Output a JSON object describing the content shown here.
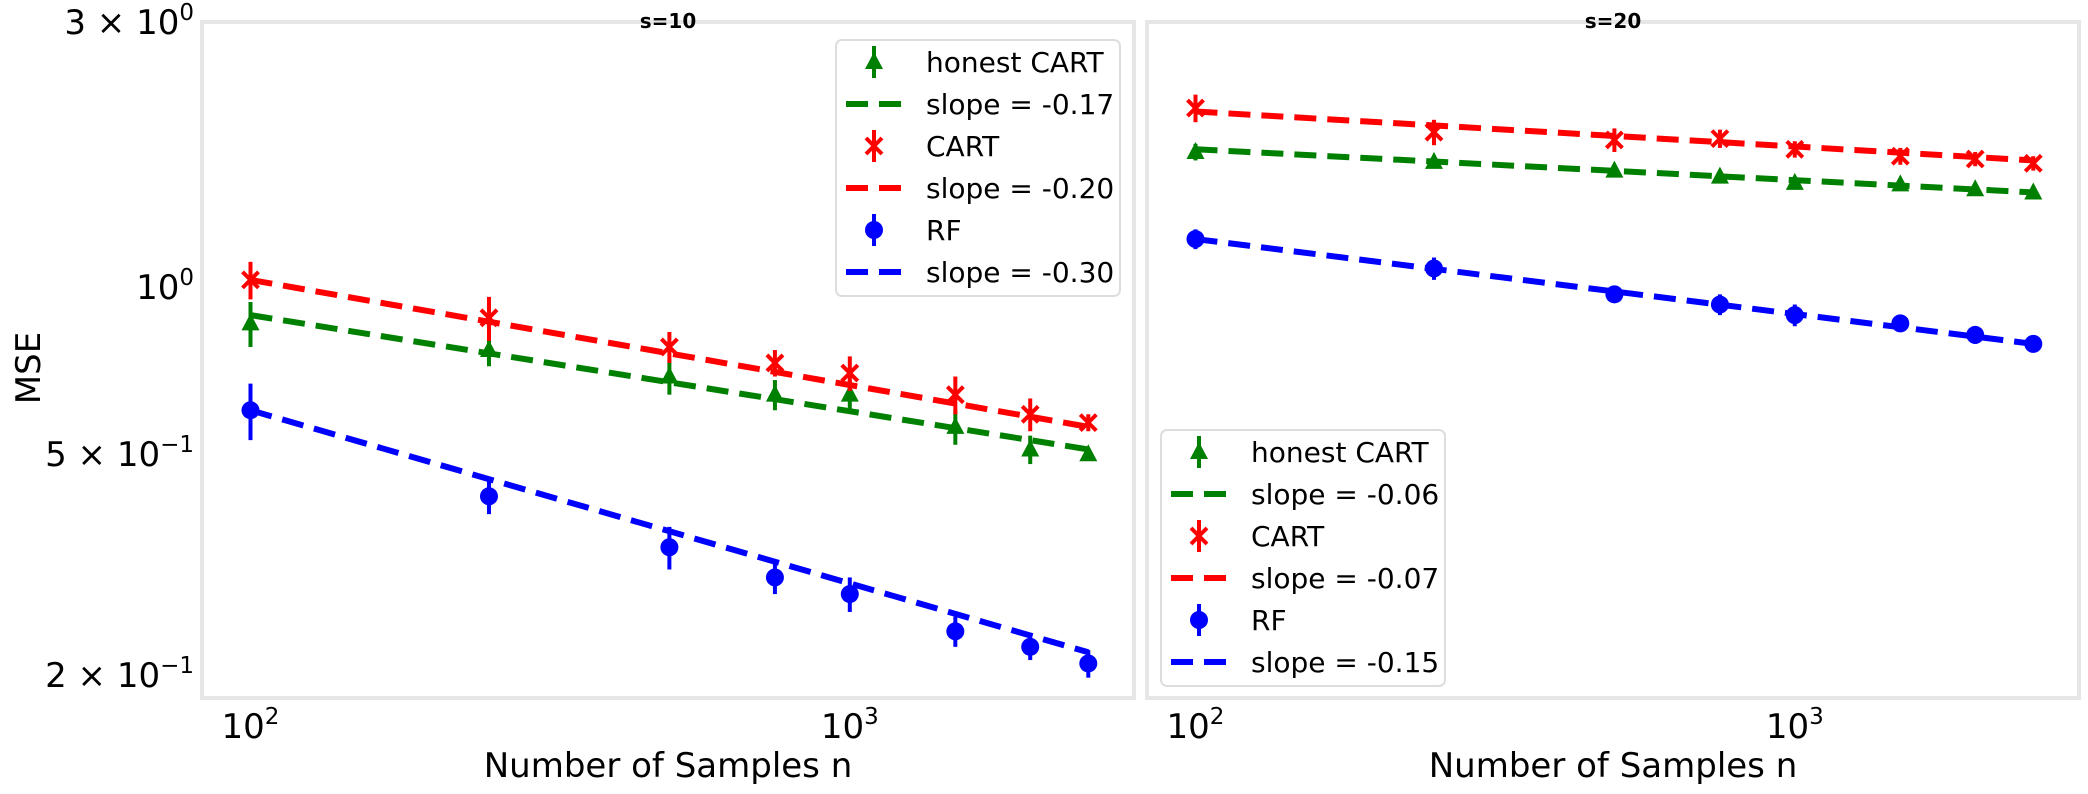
{
  "chart_data": [
    {
      "type": "scatter",
      "title": "s=10",
      "xlabel": "Number of Samples n",
      "ylabel": "MSE",
      "xscale": "log",
      "yscale": "log",
      "xlim": [
        83,
        2980
      ],
      "ylim": [
        0.182,
        3.0
      ],
      "xticks": [
        {
          "value": 100,
          "label": "10",
          "exp": "2"
        },
        {
          "value": 1000,
          "label": "10",
          "exp": "3"
        }
      ],
      "yticks": [
        {
          "value": 3.0,
          "label": "3 × 10",
          "exp": "0"
        },
        {
          "value": 1.0,
          "label": "10",
          "exp": "0"
        },
        {
          "value": 0.5,
          "label": "5 × 10",
          "exp": "−1"
        },
        {
          "value": 0.2,
          "label": "2 × 10",
          "exp": "−1"
        }
      ],
      "grid": false,
      "legend_position": "top-right",
      "x": [
        100,
        250,
        500,
        750,
        1000,
        1500,
        2000,
        2500
      ],
      "series": [
        {
          "name": "honest CART",
          "marker": "triangle",
          "color": "#008000",
          "values": [
            0.86,
            0.77,
            0.69,
            0.64,
            0.64,
            0.56,
            0.51,
            0.5
          ],
          "err": [
            0.08,
            0.05,
            0.05,
            0.04,
            0.04,
            0.04,
            0.03,
            0.01
          ]
        },
        {
          "name": "slope = -0.17",
          "kind": "fit",
          "color": "#008000",
          "fit_start": 0.89,
          "fit_end": 0.51
        },
        {
          "name": "CART",
          "marker": "x",
          "color": "#ff0000",
          "values": [
            1.03,
            0.88,
            0.78,
            0.73,
            0.7,
            0.64,
            0.59,
            0.57
          ],
          "err": [
            0.08,
            0.08,
            0.05,
            0.04,
            0.05,
            0.05,
            0.04,
            0.02
          ]
        },
        {
          "name": "slope = -0.20",
          "kind": "fit",
          "color": "#ff0000",
          "fit_start": 1.03,
          "fit_end": 0.56
        },
        {
          "name": "RF",
          "marker": "circle",
          "color": "#0000ff",
          "values": [
            0.6,
            0.42,
            0.34,
            0.3,
            0.28,
            0.24,
            0.225,
            0.21
          ],
          "err": [
            0.07,
            0.03,
            0.03,
            0.02,
            0.02,
            0.015,
            0.012,
            0.012
          ]
        },
        {
          "name": "slope = -0.30",
          "kind": "fit",
          "color": "#0000ff",
          "fit_start": 0.6,
          "fit_end": 0.22
        }
      ]
    },
    {
      "type": "scatter",
      "title": "s=20",
      "xlabel": "Number of Samples n",
      "ylabel": "",
      "xscale": "log",
      "yscale": "log",
      "xlim": [
        83,
        2980
      ],
      "ylim": [
        0.182,
        3.0
      ],
      "xticks": [
        {
          "value": 100,
          "label": "10",
          "exp": "2"
        },
        {
          "value": 1000,
          "label": "10",
          "exp": "3"
        }
      ],
      "yticks": [],
      "grid": false,
      "legend_position": "bottom-left",
      "x": [
        100,
        250,
        500,
        750,
        1000,
        1500,
        2000,
        2500
      ],
      "series": [
        {
          "name": "honest CART",
          "marker": "triangle",
          "color": "#008000",
          "values": [
            1.75,
            1.68,
            1.62,
            1.58,
            1.54,
            1.53,
            1.5,
            1.48
          ],
          "err": [
            0.06,
            0.03,
            0.03,
            0.02,
            0.02,
            0.02,
            0.015,
            0.01
          ]
        },
        {
          "name": "slope = -0.06",
          "kind": "fit",
          "color": "#008000",
          "fit_start": 1.77,
          "fit_end": 1.48
        },
        {
          "name": "CART",
          "marker": "x",
          "color": "#ff0000",
          "values": [
            2.1,
            1.9,
            1.84,
            1.85,
            1.77,
            1.72,
            1.7,
            1.67
          ],
          "err": [
            0.12,
            0.1,
            0.09,
            0.07,
            0.06,
            0.06,
            0.05,
            0.05
          ]
        },
        {
          "name": "slope = -0.07",
          "kind": "fit",
          "color": "#ff0000",
          "fit_start": 2.07,
          "fit_end": 1.69
        },
        {
          "name": "RF",
          "marker": "circle",
          "color": "#0000ff",
          "values": [
            1.22,
            1.08,
            0.97,
            0.93,
            0.89,
            0.86,
            0.82,
            0.79
          ],
          "err": [
            0.05,
            0.05,
            0.02,
            0.04,
            0.04,
            0.03,
            0.03,
            0.02
          ]
        },
        {
          "name": "slope = -0.15",
          "kind": "fit",
          "color": "#0000ff",
          "fit_start": 1.22,
          "fit_end": 0.79
        }
      ]
    }
  ]
}
